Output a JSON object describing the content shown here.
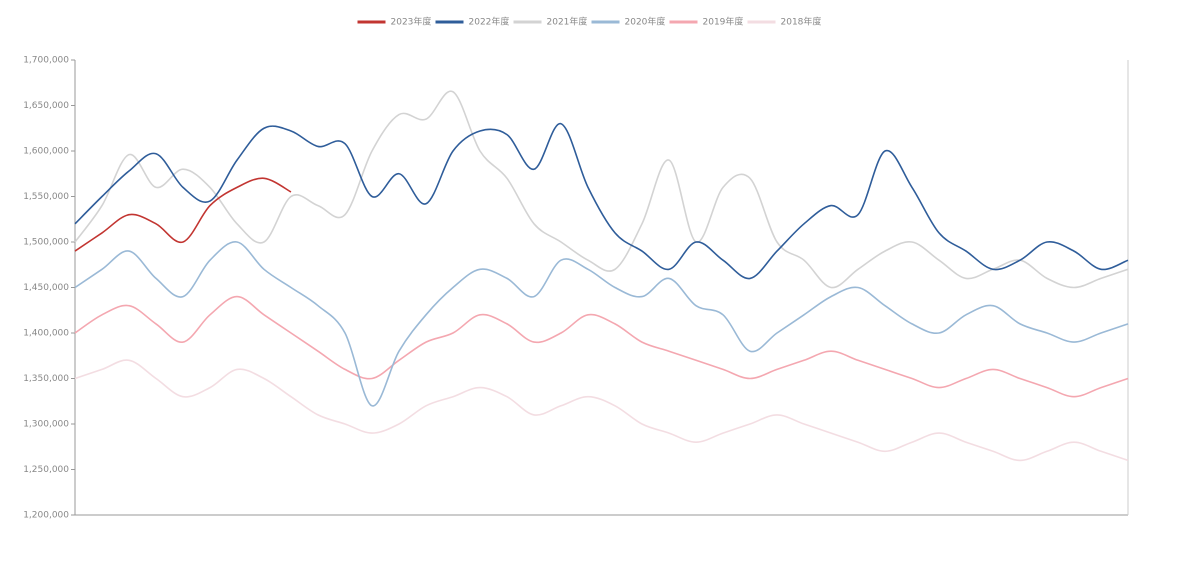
{
  "chart_data": {
    "type": "line",
    "categories": [
      null,
      null,
      null,
      null,
      null,
      null,
      null,
      null,
      null,
      null,
      null,
      null,
      null,
      null,
      null,
      null,
      null,
      null,
      null,
      null,
      null,
      null,
      null,
      null,
      null,
      null,
      null,
      null,
      null,
      null,
      null,
      null,
      null,
      null,
      null,
      null,
      null,
      null,
      null,
      null
    ],
    "series": [
      {
        "name": "2023年度",
        "color": "#c23531",
        "values": [
          1490000,
          1510000,
          1530000,
          1520000,
          1500000,
          1540000,
          1560000,
          1570000,
          1555000,
          null,
          null,
          null,
          null,
          null,
          null,
          null,
          null,
          null,
          null,
          null,
          null,
          null,
          null,
          null,
          null,
          null,
          null,
          null,
          null,
          null,
          null,
          null,
          null,
          null,
          null,
          null,
          null,
          null,
          null,
          null
        ]
      },
      {
        "name": "2022年度",
        "color": "#2f5d9a",
        "values": [
          1520000,
          1550000,
          1578000,
          1597000,
          1560000,
          1545000,
          1590000,
          1625000,
          1622000,
          1605000,
          1608000,
          1550000,
          1575000,
          1542000,
          1600000,
          1622000,
          1618000,
          1580000,
          1630000,
          1560000,
          1510000,
          1490000,
          1470000,
          1500000,
          1480000,
          1460000,
          1490000,
          1520000,
          1540000,
          1530000,
          1600000,
          1560000,
          1510000,
          1490000,
          1470000,
          1480000,
          1500000,
          1490000,
          1470000,
          1480000
        ]
      },
      {
        "name": "2021年度",
        "color": "#d3d3d3",
        "values": [
          1500000,
          1540000,
          1596000,
          1560000,
          1580000,
          1560000,
          1520000,
          1500000,
          1550000,
          1540000,
          1530000,
          1600000,
          1640000,
          1635000,
          1665000,
          1600000,
          1570000,
          1520000,
          1500000,
          1480000,
          1470000,
          1520000,
          1590000,
          1500000,
          1560000,
          1570000,
          1500000,
          1480000,
          1450000,
          1470000,
          1490000,
          1500000,
          1480000,
          1460000,
          1470000,
          1480000,
          1460000,
          1450000,
          1460000,
          1470000
        ]
      },
      {
        "name": "2020年度",
        "color": "#9ab9d6",
        "values": [
          1450000,
          1470000,
          1490000,
          1460000,
          1440000,
          1480000,
          1500000,
          1470000,
          1450000,
          1430000,
          1400000,
          1320000,
          1380000,
          1420000,
          1450000,
          1470000,
          1460000,
          1440000,
          1480000,
          1470000,
          1450000,
          1440000,
          1460000,
          1430000,
          1420000,
          1380000,
          1400000,
          1420000,
          1440000,
          1450000,
          1430000,
          1410000,
          1400000,
          1420000,
          1430000,
          1410000,
          1400000,
          1390000,
          1400000,
          1410000
        ]
      },
      {
        "name": "2019年度",
        "color": "#f4a7b0",
        "values": [
          1400000,
          1420000,
          1430000,
          1410000,
          1390000,
          1420000,
          1440000,
          1420000,
          1400000,
          1380000,
          1360000,
          1350000,
          1370000,
          1390000,
          1400000,
          1420000,
          1410000,
          1390000,
          1400000,
          1420000,
          1410000,
          1390000,
          1380000,
          1370000,
          1360000,
          1350000,
          1360000,
          1370000,
          1380000,
          1370000,
          1360000,
          1350000,
          1340000,
          1350000,
          1360000,
          1350000,
          1340000,
          1330000,
          1340000,
          1350000
        ]
      },
      {
        "name": "2018年度",
        "color": "#f3dde2",
        "values": [
          1350000,
          1360000,
          1370000,
          1350000,
          1330000,
          1340000,
          1360000,
          1350000,
          1330000,
          1310000,
          1300000,
          1290000,
          1300000,
          1320000,
          1330000,
          1340000,
          1330000,
          1310000,
          1320000,
          1330000,
          1320000,
          1300000,
          1290000,
          1280000,
          1290000,
          1300000,
          1310000,
          1300000,
          1290000,
          1280000,
          1270000,
          1280000,
          1290000,
          1280000,
          1270000,
          1260000,
          1270000,
          1280000,
          1270000,
          1260000
        ]
      }
    ],
    "ylim": [
      1200000,
      1700000
    ],
    "yticks": [
      {
        "value": 1200000,
        "label": "1,200,000"
      },
      {
        "value": 1250000,
        "label": "1,250,000"
      },
      {
        "value": 1300000,
        "label": "1,300,000"
      },
      {
        "value": 1350000,
        "label": "1,350,000"
      },
      {
        "value": 1400000,
        "label": "1,400,000"
      },
      {
        "value": 1450000,
        "label": "1,450,000"
      },
      {
        "value": 1500000,
        "label": "1,500,000"
      },
      {
        "value": 1550000,
        "label": "1,550,000"
      },
      {
        "value": 1600000,
        "label": "1,600,000"
      },
      {
        "value": 1650000,
        "label": "1,650,000"
      },
      {
        "value": 1700000,
        "label": "1,700,000"
      }
    ],
    "legend": "top"
  }
}
